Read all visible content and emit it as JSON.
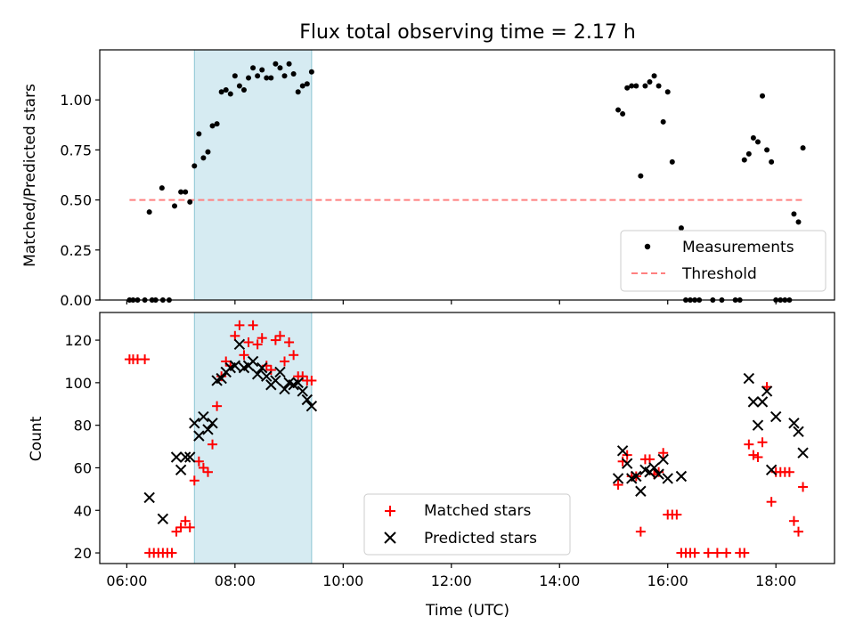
{
  "chart_data": [
    {
      "type": "scatter",
      "title": "Flux total observing time = 2.17 h",
      "xlabel": "",
      "ylabel": "Matched/Predicted stars",
      "xlim": [
        "05:30",
        "19:05"
      ],
      "ylim": [
        0,
        1.25
      ],
      "yticks": [
        "0.00",
        "0.25",
        "0.50",
        "0.75",
        "1.00"
      ],
      "xticks": [],
      "shaded_interval": [
        "07:15",
        "09:25"
      ],
      "legend_position": "lower-right",
      "series": [
        {
          "name": "Measurements",
          "marker": "dot",
          "color": "#000000",
          "points": [
            [
              "06:03",
              0
            ],
            [
              "06:07",
              0
            ],
            [
              "06:12",
              0
            ],
            [
              "06:20",
              0
            ],
            [
              "06:28",
              0
            ],
            [
              "06:32",
              0
            ],
            [
              "06:40",
              0
            ],
            [
              "06:47",
              0
            ],
            [
              "06:25",
              0.44
            ],
            [
              "06:39",
              0.56
            ],
            [
              "06:53",
              0.47
            ],
            [
              "07:00",
              0.54
            ],
            [
              "07:05",
              0.54
            ],
            [
              "07:10",
              0.49
            ],
            [
              "07:15",
              0.67
            ],
            [
              "07:20",
              0.83
            ],
            [
              "07:25",
              0.71
            ],
            [
              "07:30",
              0.74
            ],
            [
              "07:35",
              0.87
            ],
            [
              "07:40",
              0.88
            ],
            [
              "07:45",
              1.04
            ],
            [
              "07:50",
              1.05
            ],
            [
              "07:55",
              1.03
            ],
            [
              "08:00",
              1.12
            ],
            [
              "08:05",
              1.07
            ],
            [
              "08:10",
              1.05
            ],
            [
              "08:15",
              1.11
            ],
            [
              "08:20",
              1.16
            ],
            [
              "08:25",
              1.12
            ],
            [
              "08:30",
              1.15
            ],
            [
              "08:35",
              1.11
            ],
            [
              "08:40",
              1.11
            ],
            [
              "08:45",
              1.18
            ],
            [
              "08:50",
              1.16
            ],
            [
              "08:55",
              1.12
            ],
            [
              "09:00",
              1.18
            ],
            [
              "09:05",
              1.13
            ],
            [
              "09:10",
              1.04
            ],
            [
              "09:15",
              1.07
            ],
            [
              "09:20",
              1.08
            ],
            [
              "09:25",
              1.14
            ],
            [
              "15:05",
              0.95
            ],
            [
              "15:10",
              0.93
            ],
            [
              "15:15",
              1.06
            ],
            [
              "15:20",
              1.07
            ],
            [
              "15:25",
              1.07
            ],
            [
              "15:30",
              0.62
            ],
            [
              "15:35",
              1.07
            ],
            [
              "15:40",
              1.09
            ],
            [
              "15:45",
              1.12
            ],
            [
              "15:50",
              1.07
            ],
            [
              "15:55",
              0.89
            ],
            [
              "16:00",
              1.04
            ],
            [
              "16:05",
              0.69
            ],
            [
              "16:15",
              0.36
            ],
            [
              "16:20",
              0
            ],
            [
              "16:25",
              0
            ],
            [
              "16:30",
              0
            ],
            [
              "16:35",
              0
            ],
            [
              "16:50",
              0
            ],
            [
              "17:00",
              0
            ],
            [
              "17:15",
              0
            ],
            [
              "17:20",
              0
            ],
            [
              "17:25",
              0.7
            ],
            [
              "17:30",
              0.73
            ],
            [
              "17:35",
              0.81
            ],
            [
              "17:40",
              0.79
            ],
            [
              "17:45",
              1.02
            ],
            [
              "17:50",
              0.75
            ],
            [
              "17:55",
              0.69
            ],
            [
              "18:00",
              0
            ],
            [
              "18:05",
              0
            ],
            [
              "18:10",
              0
            ],
            [
              "18:15",
              0
            ],
            [
              "18:20",
              0.43
            ],
            [
              "18:25",
              0.39
            ],
            [
              "18:30",
              0.76
            ]
          ]
        },
        {
          "name": "Threshold",
          "marker": "dashed-line",
          "color": "#ff8080",
          "points": [
            [
              "06:03",
              0.5
            ],
            [
              "18:30",
              0.5
            ]
          ]
        }
      ]
    },
    {
      "type": "scatter",
      "title": "",
      "xlabel": "Time (UTC)",
      "ylabel": "Count",
      "xlim": [
        "05:30",
        "19:05"
      ],
      "ylim": [
        15,
        133
      ],
      "yticks": [
        "20",
        "40",
        "60",
        "80",
        "100",
        "120"
      ],
      "xticks": [
        "06:00",
        "08:00",
        "10:00",
        "12:00",
        "14:00",
        "16:00",
        "18:00"
      ],
      "shaded_interval": [
        "07:15",
        "09:25"
      ],
      "legend_position": "lower-center",
      "series": [
        {
          "name": "Matched stars",
          "marker": "plus",
          "color": "#ff0000",
          "points": [
            [
              "06:03",
              111
            ],
            [
              "06:07",
              111
            ],
            [
              "06:12",
              111
            ],
            [
              "06:20",
              111
            ],
            [
              "06:25",
              20
            ],
            [
              "06:30",
              20
            ],
            [
              "06:35",
              20
            ],
            [
              "06:40",
              20
            ],
            [
              "06:45",
              20
            ],
            [
              "06:50",
              20
            ],
            [
              "06:55",
              30
            ],
            [
              "07:00",
              32
            ],
            [
              "07:05",
              35
            ],
            [
              "07:10",
              32
            ],
            [
              "07:15",
              54
            ],
            [
              "07:20",
              63
            ],
            [
              "07:25",
              60
            ],
            [
              "07:30",
              58
            ],
            [
              "07:35",
              71
            ],
            [
              "07:40",
              89
            ],
            [
              "07:45",
              103
            ],
            [
              "07:50",
              110
            ],
            [
              "07:55",
              108
            ],
            [
              "08:00",
              122
            ],
            [
              "08:05",
              127
            ],
            [
              "08:10",
              113
            ],
            [
              "08:15",
              119
            ],
            [
              "08:20",
              127
            ],
            [
              "08:25",
              118
            ],
            [
              "08:30",
              121
            ],
            [
              "08:35",
              108
            ],
            [
              "08:40",
              106
            ],
            [
              "08:45",
              120
            ],
            [
              "08:50",
              122
            ],
            [
              "08:55",
              110
            ],
            [
              "09:00",
              119
            ],
            [
              "09:05",
              113
            ],
            [
              "09:10",
              103
            ],
            [
              "09:15",
              103
            ],
            [
              "09:20",
              101
            ],
            [
              "09:25",
              101
            ],
            [
              "15:05",
              52
            ],
            [
              "15:10",
              63
            ],
            [
              "15:15",
              66
            ],
            [
              "15:20",
              56
            ],
            [
              "15:25",
              56
            ],
            [
              "15:30",
              30
            ],
            [
              "15:35",
              64
            ],
            [
              "15:40",
              64
            ],
            [
              "15:45",
              57
            ],
            [
              "15:50",
              58
            ],
            [
              "15:55",
              67
            ],
            [
              "16:00",
              38
            ],
            [
              "16:05",
              38
            ],
            [
              "16:10",
              38
            ],
            [
              "16:15",
              20
            ],
            [
              "16:20",
              20
            ],
            [
              "16:25",
              20
            ],
            [
              "16:30",
              20
            ],
            [
              "16:45",
              20
            ],
            [
              "16:55",
              20
            ],
            [
              "17:05",
              20
            ],
            [
              "17:20",
              20
            ],
            [
              "17:25",
              20
            ],
            [
              "17:30",
              71
            ],
            [
              "17:35",
              66
            ],
            [
              "17:40",
              65
            ],
            [
              "17:45",
              72
            ],
            [
              "17:50",
              98
            ],
            [
              "17:55",
              44
            ],
            [
              "18:00",
              58
            ],
            [
              "18:05",
              58
            ],
            [
              "18:10",
              58
            ],
            [
              "18:15",
              58
            ],
            [
              "18:20",
              35
            ],
            [
              "18:25",
              30
            ],
            [
              "18:30",
              51
            ]
          ]
        },
        {
          "name": "Predicted stars",
          "marker": "x",
          "color": "#000000",
          "points": [
            [
              "06:25",
              46
            ],
            [
              "06:40",
              36
            ],
            [
              "06:55",
              65
            ],
            [
              "07:00",
              59
            ],
            [
              "07:05",
              65
            ],
            [
              "07:10",
              65
            ],
            [
              "07:15",
              81
            ],
            [
              "07:20",
              75
            ],
            [
              "07:25",
              84
            ],
            [
              "07:30",
              78
            ],
            [
              "07:35",
              81
            ],
            [
              "07:40",
              101
            ],
            [
              "07:45",
              102
            ],
            [
              "07:50",
              105
            ],
            [
              "07:55",
              107
            ],
            [
              "08:00",
              108
            ],
            [
              "08:05",
              118
            ],
            [
              "08:10",
              107
            ],
            [
              "08:15",
              108
            ],
            [
              "08:20",
              110
            ],
            [
              "08:25",
              104
            ],
            [
              "08:30",
              107
            ],
            [
              "08:35",
              103
            ],
            [
              "08:40",
              99
            ],
            [
              "08:45",
              101
            ],
            [
              "08:50",
              105
            ],
            [
              "08:55",
              97
            ],
            [
              "09:00",
              100
            ],
            [
              "09:05",
              99
            ],
            [
              "09:10",
              100
            ],
            [
              "09:15",
              96
            ],
            [
              "09:20",
              92
            ],
            [
              "09:25",
              89
            ],
            [
              "15:05",
              55
            ],
            [
              "15:10",
              68
            ],
            [
              "15:15",
              62
            ],
            [
              "15:20",
              55
            ],
            [
              "15:25",
              56
            ],
            [
              "15:30",
              49
            ],
            [
              "15:35",
              59
            ],
            [
              "15:40",
              58
            ],
            [
              "15:45",
              60
            ],
            [
              "15:50",
              57
            ],
            [
              "15:55",
              64
            ],
            [
              "16:00",
              55
            ],
            [
              "16:15",
              56
            ],
            [
              "17:30",
              102
            ],
            [
              "17:35",
              91
            ],
            [
              "17:40",
              80
            ],
            [
              "17:45",
              91
            ],
            [
              "17:50",
              96
            ],
            [
              "17:55",
              59
            ],
            [
              "18:00",
              84
            ],
            [
              "18:20",
              81
            ],
            [
              "18:25",
              77
            ],
            [
              "18:30",
              67
            ]
          ]
        }
      ]
    }
  ]
}
